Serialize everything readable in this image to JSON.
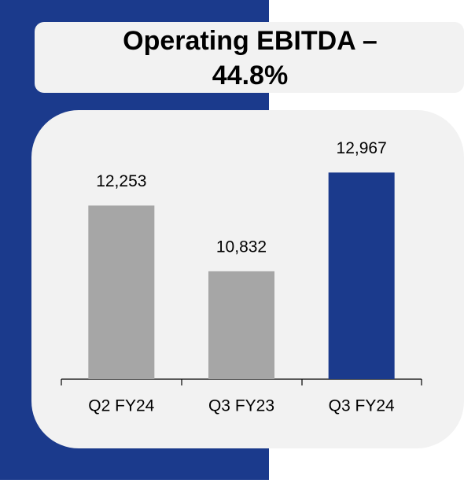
{
  "chart_data": {
    "type": "bar",
    "title": "Operating EBITDA – 44.8%",
    "categories": [
      "Q2 FY24",
      "Q3 FY23",
      "Q3 FY24"
    ],
    "values": [
      12253,
      10832,
      12967
    ],
    "value_labels": [
      "12,253",
      "10,832",
      "12,967"
    ],
    "colors": [
      "#a6a6a6",
      "#a6a6a6",
      "#1b3a8c"
    ],
    "ylim": [
      8500,
      13500
    ]
  }
}
